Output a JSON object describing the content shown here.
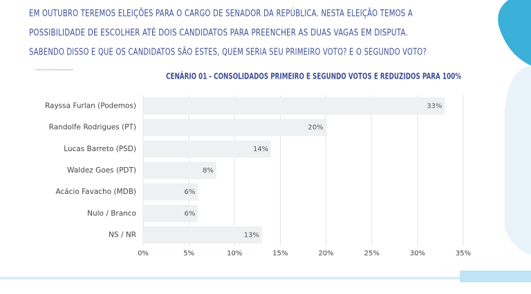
{
  "intro": {
    "lines": [
      "EM OUTUBRO TEREMOS ELEIÇÕES PARA O CARGO DE SENADOR DA REPÚBLICA. NESTA ELEIÇÃO TEMOS A",
      "POSSIBILIDADE DE ESCOLHER ATÉ DOIS CANDIDATOS PARA PREENCHER AS DUAS VAGAS EM DISPUTA.",
      "SABENDO DISSO E QUE OS CANDIDATOS SÃO ESTES, QUEM SERIA SEU PRIMEIRO VOTO? E O SEGUNDO VOTO?"
    ]
  },
  "chart_data": {
    "type": "barh",
    "title": "CENÁRIO 01 - CONSOLIDADOS PRIMEIRO E SEGUNDO VOTOS E REDUZIDOS PARA 100%",
    "categories": [
      "Rayssa Furlan (Podemos)",
      "Randolfe Rodrigues (PT)",
      "Lucas Barreto (PSD)",
      "Waldez Goes (PDT)",
      "Acácio Favacho (MDB)",
      "Nulo / Branco",
      "NS / NR"
    ],
    "values": [
      33,
      20,
      14,
      8,
      6,
      6,
      13
    ],
    "value_labels": [
      "33%",
      "20%",
      "14%",
      "8%",
      "6%",
      "6%",
      "13%"
    ],
    "color": "#eef0f1",
    "xlim": [
      0,
      35
    ],
    "xticks": [
      {
        "value": 0,
        "label": "0%"
      },
      {
        "value": 5,
        "label": "5%"
      },
      {
        "value": 10,
        "label": "10%"
      },
      {
        "value": 15,
        "label": "15%"
      },
      {
        "value": 20,
        "label": "20%"
      },
      {
        "value": 25,
        "label": "25%"
      },
      {
        "value": 30,
        "label": "30%"
      },
      {
        "value": 35,
        "label": "35%"
      }
    ],
    "grid": true
  }
}
